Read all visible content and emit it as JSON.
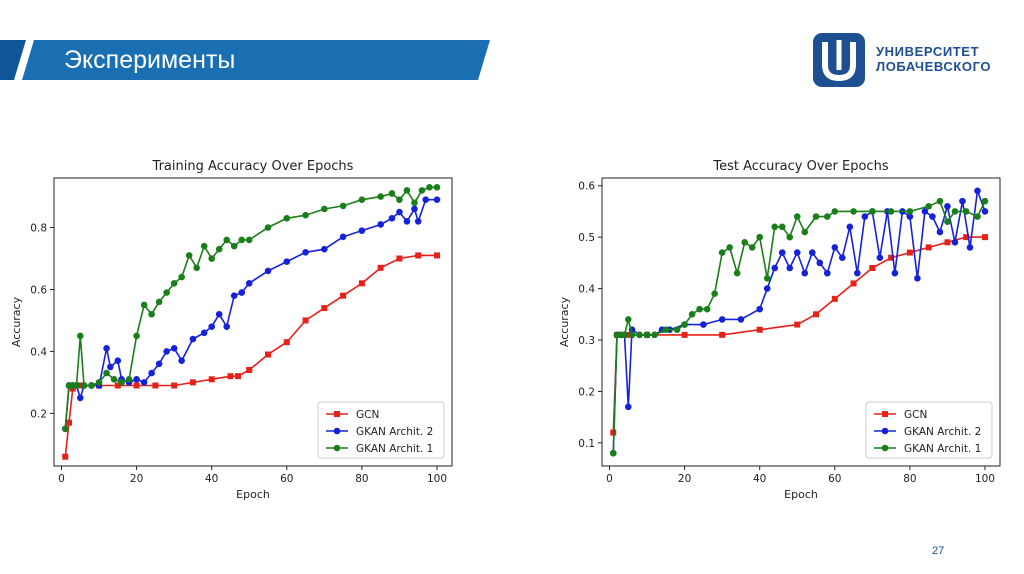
{
  "slide": {
    "title": "Эксперименты",
    "logo_line1": "УНИВЕРСИТЕТ",
    "logo_line2": "ЛОБАЧЕВСКОГО",
    "page_number": "27",
    "brand_color": "#1a6fb3"
  },
  "chart_data": [
    {
      "type": "line",
      "title": "Training Accuracy Over Epochs",
      "xlabel": "Epoch",
      "ylabel": "Accuracy",
      "xlim": [
        -2,
        104
      ],
      "ylim": [
        0.03,
        0.96
      ],
      "xticks": [
        0,
        20,
        40,
        60,
        80,
        100
      ],
      "xtick_labels": [
        "0",
        "20",
        "40",
        "60",
        "80",
        "100"
      ],
      "yticks": [
        0.2,
        0.4,
        0.6,
        0.8
      ],
      "ytick_labels": [
        "0.2",
        "0.4",
        "0.6",
        "0.8"
      ],
      "legend_position": "bottom-right",
      "series": [
        {
          "name": "GCN",
          "color": "#e8201a",
          "marker": "square",
          "x": [
            1,
            2,
            3,
            5,
            10,
            15,
            20,
            25,
            30,
            35,
            40,
            45,
            47,
            50,
            55,
            60,
            65,
            70,
            75,
            80,
            85,
            90,
            95,
            100
          ],
          "y": [
            0.06,
            0.17,
            0.28,
            0.29,
            0.29,
            0.29,
            0.29,
            0.29,
            0.29,
            0.3,
            0.31,
            0.32,
            0.32,
            0.34,
            0.39,
            0.43,
            0.5,
            0.54,
            0.58,
            0.62,
            0.67,
            0.7,
            0.71,
            0.71
          ]
        },
        {
          "name": "GKAN Archit. 2",
          "color": "#1622d8",
          "marker": "circle",
          "x": [
            1,
            2,
            3,
            4,
            5,
            6,
            8,
            10,
            12,
            13,
            15,
            16,
            18,
            20,
            22,
            24,
            26,
            28,
            30,
            32,
            35,
            38,
            40,
            42,
            44,
            46,
            48,
            50,
            55,
            60,
            65,
            70,
            75,
            80,
            85,
            88,
            90,
            92,
            94,
            95,
            97,
            100
          ],
          "y": [
            0.15,
            0.29,
            0.29,
            0.29,
            0.25,
            0.29,
            0.29,
            0.29,
            0.41,
            0.35,
            0.37,
            0.31,
            0.3,
            0.31,
            0.3,
            0.33,
            0.36,
            0.4,
            0.41,
            0.37,
            0.44,
            0.46,
            0.48,
            0.52,
            0.48,
            0.58,
            0.59,
            0.62,
            0.66,
            0.69,
            0.72,
            0.73,
            0.77,
            0.79,
            0.81,
            0.83,
            0.85,
            0.82,
            0.86,
            0.82,
            0.89,
            0.89
          ]
        },
        {
          "name": "GKAN Archit. 1",
          "color": "#1a7f1a",
          "marker": "circle",
          "x": [
            1,
            2,
            3,
            4,
            5,
            6,
            8,
            10,
            12,
            14,
            16,
            18,
            20,
            22,
            24,
            26,
            28,
            30,
            32,
            34,
            36,
            38,
            40,
            42,
            44,
            46,
            48,
            50,
            55,
            60,
            65,
            70,
            75,
            80,
            85,
            88,
            90,
            92,
            94,
            96,
            98,
            100
          ],
          "y": [
            0.15,
            0.29,
            0.29,
            0.29,
            0.45,
            0.29,
            0.29,
            0.3,
            0.33,
            0.31,
            0.3,
            0.31,
            0.45,
            0.55,
            0.52,
            0.56,
            0.59,
            0.62,
            0.64,
            0.71,
            0.67,
            0.74,
            0.7,
            0.73,
            0.76,
            0.74,
            0.76,
            0.76,
            0.8,
            0.83,
            0.84,
            0.86,
            0.87,
            0.89,
            0.9,
            0.91,
            0.89,
            0.92,
            0.88,
            0.92,
            0.93,
            0.93
          ]
        }
      ]
    },
    {
      "type": "line",
      "title": "Test Accuracy Over Epochs",
      "xlabel": "Epoch",
      "ylabel": "Accuracy",
      "xlim": [
        -2,
        104
      ],
      "ylim": [
        0.055,
        0.615
      ],
      "xticks": [
        0,
        20,
        40,
        60,
        80,
        100
      ],
      "xtick_labels": [
        "0",
        "20",
        "40",
        "60",
        "80",
        "100"
      ],
      "yticks": [
        0.1,
        0.2,
        0.3,
        0.4,
        0.5,
        0.6
      ],
      "ytick_labels": [
        "0.1",
        "0.2",
        "0.3",
        "0.4",
        "0.5",
        "0.6"
      ],
      "legend_position": "bottom-right",
      "series": [
        {
          "name": "GCN",
          "color": "#e8201a",
          "marker": "square",
          "x": [
            1,
            2,
            5,
            10,
            20,
            30,
            40,
            50,
            55,
            60,
            65,
            70,
            75,
            80,
            85,
            90,
            95,
            100
          ],
          "y": [
            0.12,
            0.31,
            0.31,
            0.31,
            0.31,
            0.31,
            0.32,
            0.33,
            0.35,
            0.38,
            0.41,
            0.44,
            0.46,
            0.47,
            0.48,
            0.49,
            0.5,
            0.5
          ],
          "marker_step": 1
        },
        {
          "name": "GKAN Archit. 2",
          "color": "#1622d8",
          "marker": "circle",
          "x": [
            1,
            2,
            3,
            4,
            5,
            6,
            8,
            10,
            12,
            14,
            16,
            20,
            25,
            30,
            35,
            40,
            42,
            44,
            46,
            48,
            50,
            52,
            54,
            56,
            58,
            60,
            62,
            64,
            66,
            68,
            70,
            72,
            74,
            76,
            78,
            80,
            82,
            84,
            86,
            88,
            90,
            92,
            94,
            96,
            98,
            100
          ],
          "y": [
            0.08,
            0.31,
            0.31,
            0.31,
            0.17,
            0.32,
            0.31,
            0.31,
            0.31,
            0.32,
            0.32,
            0.33,
            0.33,
            0.34,
            0.34,
            0.36,
            0.4,
            0.44,
            0.47,
            0.44,
            0.47,
            0.43,
            0.47,
            0.45,
            0.43,
            0.48,
            0.46,
            0.52,
            0.43,
            0.54,
            0.55,
            0.46,
            0.55,
            0.43,
            0.55,
            0.54,
            0.42,
            0.55,
            0.54,
            0.51,
            0.56,
            0.49,
            0.57,
            0.48,
            0.59,
            0.55
          ]
        },
        {
          "name": "GKAN Archit. 1",
          "color": "#1a7f1a",
          "marker": "circle",
          "x": [
            1,
            2,
            3,
            4,
            5,
            6,
            8,
            10,
            12,
            15,
            18,
            20,
            22,
            24,
            26,
            28,
            30,
            32,
            34,
            36,
            38,
            40,
            42,
            44,
            46,
            48,
            50,
            52,
            55,
            58,
            60,
            65,
            70,
            75,
            80,
            85,
            88,
            90,
            92,
            95,
            98,
            100
          ],
          "y": [
            0.08,
            0.31,
            0.31,
            0.31,
            0.34,
            0.31,
            0.31,
            0.31,
            0.31,
            0.32,
            0.32,
            0.33,
            0.35,
            0.36,
            0.36,
            0.39,
            0.47,
            0.48,
            0.43,
            0.49,
            0.48,
            0.5,
            0.42,
            0.52,
            0.52,
            0.5,
            0.54,
            0.51,
            0.54,
            0.54,
            0.55,
            0.55,
            0.55,
            0.55,
            0.55,
            0.56,
            0.57,
            0.53,
            0.55,
            0.55,
            0.54,
            0.57
          ]
        }
      ]
    }
  ]
}
